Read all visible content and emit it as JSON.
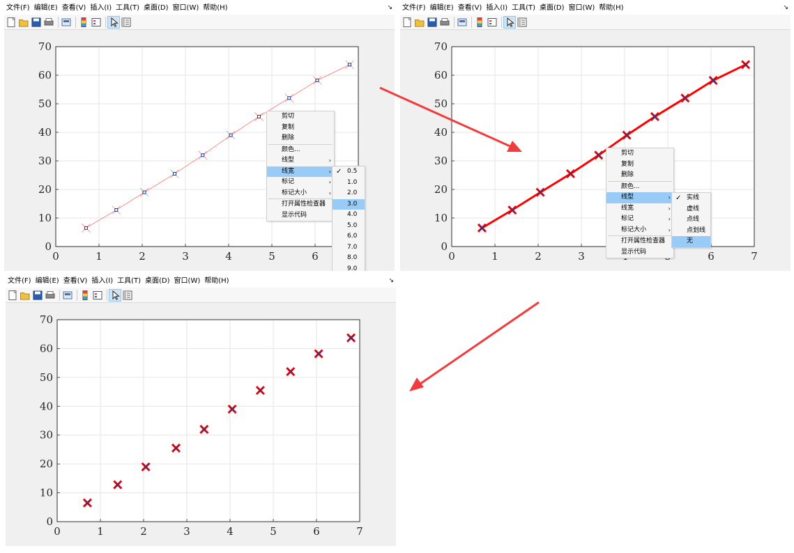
{
  "menu": [
    "文件(F)",
    "编辑(E)",
    "查看(V)",
    "插入(I)",
    "工具(T)",
    "桌面(D)",
    "窗口(W)",
    "帮助(H)"
  ],
  "menu_corner": "↘",
  "toolbar_icons": [
    "new-figure-icon",
    "open-file-icon",
    "save-icon",
    "print-icon",
    "link-plot-icon",
    "insert-colorbar-icon",
    "insert-legend-icon",
    "edit-plot-icon",
    "property-inspector-icon"
  ],
  "context_menu": {
    "items": [
      "剪切",
      "复制",
      "删除",
      "颜色...",
      "线型",
      "线宽",
      "标记",
      "标记大小",
      "打开属性检查器",
      "显示代码"
    ]
  },
  "linewidth_submenu": {
    "items": [
      "0.5",
      "1.0",
      "2.0",
      "3.0",
      "4.0",
      "5.0",
      "6.0",
      "7.0",
      "8.0",
      "9.0"
    ],
    "checked": "0.5",
    "hover": "3.0"
  },
  "linestyle_submenu": {
    "items": [
      "实线",
      "虚线",
      "点线",
      "点划线",
      "无"
    ],
    "checked": "实线",
    "hover": "无"
  },
  "colors": {
    "line": "#ff0000",
    "marker_edge": "#0b3d91",
    "grid": "#e6e6e6",
    "arrow": "#f03c3c",
    "highlight": "#99cbf7"
  },
  "chart_data": [
    {
      "type": "line",
      "x": [
        0.7,
        1.4,
        2.05,
        2.75,
        3.4,
        4.05,
        4.7,
        5.4,
        6.05,
        6.8
      ],
      "y": [
        6.5,
        12.8,
        19.0,
        25.5,
        32.0,
        39.0,
        45.5,
        52.0,
        58.2,
        63.7
      ],
      "marker": "x",
      "line_style": "solid",
      "line_width": 0.5,
      "xlim": [
        0,
        7
      ],
      "ylim": [
        0,
        70
      ],
      "xticks": [
        "0",
        "1",
        "2",
        "3",
        "4",
        "5",
        "6",
        "7"
      ],
      "yticks": [
        "0",
        "10",
        "20",
        "30",
        "40",
        "50",
        "60",
        "70"
      ],
      "grid": true,
      "title": "",
      "xlabel": "",
      "ylabel": ""
    },
    {
      "type": "line",
      "x": [
        0.7,
        1.4,
        2.05,
        2.75,
        3.4,
        4.05,
        4.7,
        5.4,
        6.05,
        6.8
      ],
      "y": [
        6.5,
        12.8,
        19.0,
        25.5,
        32.0,
        39.0,
        45.5,
        52.0,
        58.2,
        63.7
      ],
      "marker": "x",
      "line_style": "solid",
      "line_width": 3.0,
      "xlim": [
        0,
        7
      ],
      "ylim": [
        0,
        70
      ],
      "xticks": [
        "0",
        "1",
        "2",
        "3",
        "4",
        "5",
        "6",
        "7"
      ],
      "yticks": [
        "0",
        "10",
        "20",
        "30",
        "40",
        "50",
        "60",
        "70"
      ],
      "grid": true,
      "title": "",
      "xlabel": "",
      "ylabel": ""
    },
    {
      "type": "scatter",
      "x": [
        0.7,
        1.4,
        2.05,
        2.75,
        3.4,
        4.05,
        4.7,
        5.4,
        6.05,
        6.8
      ],
      "y": [
        6.5,
        12.8,
        19.0,
        25.5,
        32.0,
        39.0,
        45.5,
        52.0,
        58.2,
        63.7
      ],
      "marker": "x",
      "line_style": "none",
      "line_width": 3.0,
      "xlim": [
        0,
        7
      ],
      "ylim": [
        0,
        70
      ],
      "xticks": [
        "0",
        "1",
        "2",
        "3",
        "4",
        "5",
        "6",
        "7"
      ],
      "yticks": [
        "0",
        "10",
        "20",
        "30",
        "40",
        "50",
        "60",
        "70"
      ],
      "grid": true,
      "title": "",
      "xlabel": "",
      "ylabel": ""
    }
  ]
}
